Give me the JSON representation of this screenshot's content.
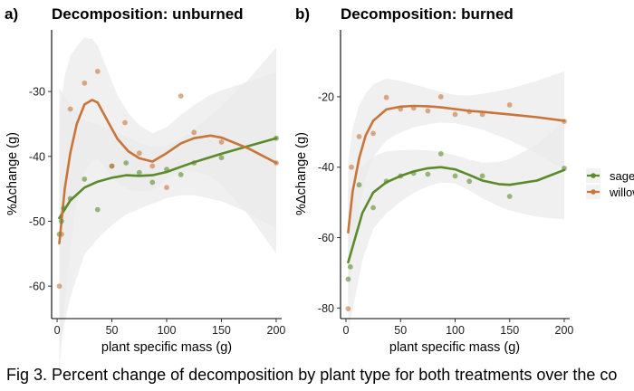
{
  "caption": "Fig 3. Percent change of decomposition by plant type for both treatments over the co",
  "colors": {
    "sage": "#5a8a2a",
    "willow": "#c8743a",
    "band": "#ebebeb"
  },
  "chart_data": [
    {
      "type": "scatter",
      "panel_letter": "a)",
      "title": "Decomposition: unburned",
      "xlabel": "plant specific mass (g)",
      "ylabel": "%Δchange (g)",
      "xlim": [
        -5,
        205
      ],
      "ylim": [
        -65,
        -20.5
      ],
      "xticks": [
        0,
        50,
        100,
        150,
        200
      ],
      "yticks": [
        -60,
        -50,
        -40,
        -30
      ],
      "grid": false,
      "series": [
        {
          "name": "sage",
          "points": [
            [
              2,
              -52
            ],
            [
              4,
              -50
            ],
            [
              6,
              -48
            ],
            [
              12,
              -46.5
            ],
            [
              25,
              -43.5
            ],
            [
              37,
              -48.2
            ],
            [
              50,
              -41.5
            ],
            [
              63,
              -41
            ],
            [
              75,
              -42.5
            ],
            [
              87,
              -44
            ],
            [
              100,
              -42
            ],
            [
              113,
              -42.8
            ],
            [
              125,
              -41
            ],
            [
              150,
              -40.2
            ],
            [
              200,
              -37.2
            ]
          ],
          "smooth": [
            [
              2,
              -49.5
            ],
            [
              12,
              -46.8
            ],
            [
              25,
              -44.8
            ],
            [
              37,
              -43.9
            ],
            [
              50,
              -43.3
            ],
            [
              63,
              -42.9
            ],
            [
              75,
              -43
            ],
            [
              87,
              -42.9
            ],
            [
              100,
              -42.4
            ],
            [
              113,
              -41.6
            ],
            [
              125,
              -40.9
            ],
            [
              150,
              -39.6
            ],
            [
              175,
              -38.4
            ],
            [
              200,
              -37.2
            ]
          ]
        },
        {
          "name": "willow",
          "points": [
            [
              2,
              -60
            ],
            [
              4,
              -52
            ],
            [
              12,
              -32.7
            ],
            [
              25,
              -28.7
            ],
            [
              37,
              -26.9
            ],
            [
              50,
              -41.5
            ],
            [
              62,
              -34.8
            ],
            [
              75,
              -39.5
            ],
            [
              87,
              -41.5
            ],
            [
              100,
              -44.8
            ],
            [
              113,
              -30.7
            ],
            [
              125,
              -36.3
            ],
            [
              150,
              -37.8
            ],
            [
              200,
              -41
            ]
          ],
          "smooth": [
            [
              2,
              -53.4
            ],
            [
              7,
              -45
            ],
            [
              12,
              -39.5
            ],
            [
              18,
              -35
            ],
            [
              25,
              -32
            ],
            [
              32,
              -31.3
            ],
            [
              37,
              -31.7
            ],
            [
              45,
              -34.2
            ],
            [
              55,
              -37.3
            ],
            [
              65,
              -39.2
            ],
            [
              75,
              -40.3
            ],
            [
              87,
              -40.8
            ],
            [
              100,
              -39.5
            ],
            [
              113,
              -38
            ],
            [
              125,
              -37.2
            ],
            [
              140,
              -36.8
            ],
            [
              150,
              -37.1
            ],
            [
              175,
              -38.8
            ],
            [
              200,
              -41
            ]
          ]
        }
      ]
    },
    {
      "type": "scatter",
      "panel_letter": "b)",
      "title": "Decomposition: burned",
      "xlabel": "plant specific mass (g)",
      "ylabel": "%Δchange (g)",
      "xlim": [
        -5,
        205
      ],
      "ylim": [
        -83,
        -1
      ],
      "xticks": [
        0,
        50,
        100,
        150,
        200
      ],
      "yticks": [
        -80,
        -60,
        -40,
        -20
      ],
      "grid": false,
      "series": [
        {
          "name": "sage",
          "points": [
            [
              2,
              -71.8
            ],
            [
              4,
              -68.3
            ],
            [
              12,
              -45
            ],
            [
              25,
              -51.5
            ],
            [
              37,
              -44
            ],
            [
              50,
              -42.5
            ],
            [
              62,
              -41.7
            ],
            [
              75,
              -42
            ],
            [
              87,
              -36.2
            ],
            [
              100,
              -42.5
            ],
            [
              113,
              -44
            ],
            [
              125,
              -42.5
            ],
            [
              150,
              -48.3
            ],
            [
              200,
              -40.3
            ]
          ],
          "smooth": [
            [
              2,
              -67
            ],
            [
              8,
              -60.5
            ],
            [
              15,
              -53
            ],
            [
              25,
              -47.2
            ],
            [
              37,
              -44.3
            ],
            [
              50,
              -42.5
            ],
            [
              62,
              -41.2
            ],
            [
              75,
              -40.3
            ],
            [
              87,
              -40
            ],
            [
              100,
              -40.6
            ],
            [
              113,
              -42.2
            ],
            [
              125,
              -43.8
            ],
            [
              140,
              -44.8
            ],
            [
              150,
              -45
            ],
            [
              175,
              -43.8
            ],
            [
              200,
              -40.8
            ]
          ]
        },
        {
          "name": "willow",
          "points": [
            [
              2,
              -80.2
            ],
            [
              5,
              -40
            ],
            [
              12,
              -31.3
            ],
            [
              25,
              -30.4
            ],
            [
              37,
              -20.2
            ],
            [
              50,
              -23.5
            ],
            [
              62,
              -23.2
            ],
            [
              75,
              -24
            ],
            [
              87,
              -20
            ],
            [
              100,
              -25
            ],
            [
              113,
              -24.2
            ],
            [
              125,
              -25
            ],
            [
              150,
              -22.3
            ],
            [
              200,
              -27
            ]
          ],
          "smooth": [
            [
              2,
              -58.5
            ],
            [
              6,
              -47
            ],
            [
              12,
              -37.5
            ],
            [
              18,
              -31
            ],
            [
              25,
              -26.8
            ],
            [
              37,
              -23.6
            ],
            [
              50,
              -22.8
            ],
            [
              62,
              -22.6
            ],
            [
              75,
              -22.7
            ],
            [
              87,
              -23
            ],
            [
              100,
              -23.5
            ],
            [
              113,
              -24
            ],
            [
              125,
              -24.3
            ],
            [
              150,
              -25
            ],
            [
              175,
              -25.8
            ],
            [
              200,
              -26.8
            ]
          ]
        }
      ]
    }
  ]
}
